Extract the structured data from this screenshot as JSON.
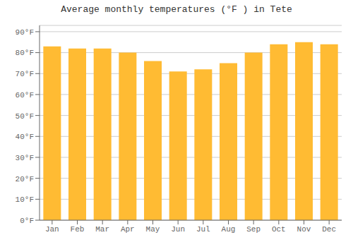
{
  "chart_data": {
    "type": "bar",
    "title": "Average monthly temperatures (°F ) in Tete",
    "categories": [
      "Jan",
      "Feb",
      "Mar",
      "Apr",
      "May",
      "Jun",
      "Jul",
      "Aug",
      "Sep",
      "Oct",
      "Nov",
      "Dec"
    ],
    "values": [
      83,
      82,
      82,
      80,
      76,
      71,
      72,
      75,
      80,
      84,
      85,
      84
    ],
    "color": "#FFBB33",
    "ylim": [
      0,
      93
    ],
    "yticks": [
      {
        "value": 0,
        "label": "0°F"
      },
      {
        "value": 10,
        "label": "10°F"
      },
      {
        "value": 20,
        "label": "20°F"
      },
      {
        "value": 30,
        "label": "30°F"
      },
      {
        "value": 40,
        "label": "40°F"
      },
      {
        "value": 50,
        "label": "50°F"
      },
      {
        "value": 60,
        "label": "60°F"
      },
      {
        "value": 70,
        "label": "70°F"
      },
      {
        "value": 80,
        "label": "80°F"
      },
      {
        "value": 90,
        "label": "90°F"
      }
    ],
    "grid": true
  }
}
